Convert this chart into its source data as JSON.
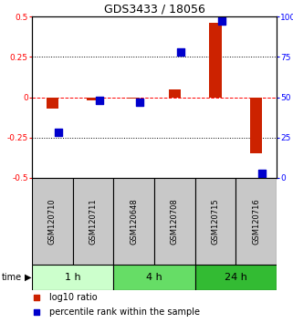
{
  "title": "GDS3433 / 18056",
  "samples": [
    "GSM120710",
    "GSM120711",
    "GSM120648",
    "GSM120708",
    "GSM120715",
    "GSM120716"
  ],
  "log10_ratio": [
    -0.07,
    -0.02,
    -0.01,
    0.05,
    0.46,
    -0.35
  ],
  "percentile_rank": [
    28,
    48,
    47,
    78,
    97,
    3
  ],
  "left_ylim": [
    -0.5,
    0.5
  ],
  "right_ylim": [
    0,
    100
  ],
  "left_yticks": [
    -0.5,
    -0.25,
    0,
    0.25,
    0.5
  ],
  "right_yticks": [
    0,
    25,
    50,
    75,
    100
  ],
  "left_ytick_labels": [
    "-0.5",
    "-0.25",
    "0",
    "0.25",
    "0.5"
  ],
  "right_ytick_labels": [
    "0",
    "25",
    "50",
    "75",
    "100%"
  ],
  "hlines": [
    -0.25,
    0,
    0.25
  ],
  "hline_styles": [
    "dotted",
    "dashed",
    "dotted"
  ],
  "hline_colors": [
    "black",
    "red",
    "black"
  ],
  "bar_color": "#cc2200",
  "square_color": "#0000cc",
  "bar_width": 0.3,
  "square_size": 30,
  "time_groups": [
    {
      "label": "1 h",
      "count": 2,
      "color": "#ccffcc"
    },
    {
      "label": "4 h",
      "count": 2,
      "color": "#66dd66"
    },
    {
      "label": "24 h",
      "count": 2,
      "color": "#33bb33"
    }
  ],
  "legend_items": [
    {
      "label": "log10 ratio",
      "color": "#cc2200"
    },
    {
      "label": "percentile rank within the sample",
      "color": "#0000cc"
    }
  ],
  "sample_box_color": "#c8c8c8",
  "background_color": "#ffffff",
  "title_fontsize": 9,
  "tick_fontsize": 6.5,
  "sample_label_fontsize": 6,
  "time_label_fontsize": 8,
  "legend_fontsize": 7
}
